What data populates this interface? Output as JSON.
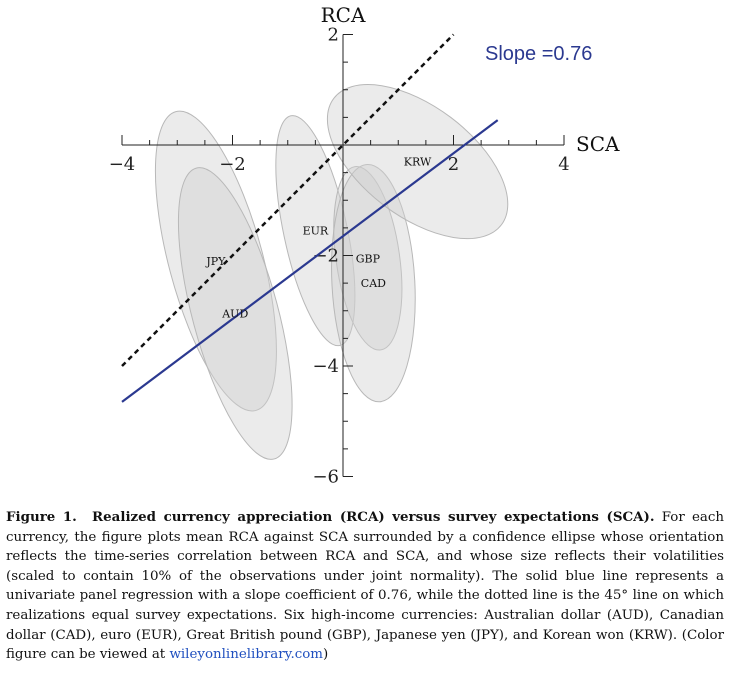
{
  "chart_data": {
    "type": "scatter",
    "xlabel": "SCA",
    "ylabel": "RCA",
    "xlim": [
      -4,
      4
    ],
    "ylim": [
      -6,
      2
    ],
    "x_major_ticks": [
      -4,
      -2,
      2,
      4
    ],
    "y_major_ticks": [
      2,
      -2,
      -4,
      -6
    ],
    "x_tick_labels": [
      "−4",
      "−2",
      "2",
      "4"
    ],
    "y_tick_labels": [
      "2",
      "−2",
      "−4",
      "−6"
    ],
    "grid": false,
    "points": [
      {
        "label": "JPY",
        "x": -2.3,
        "y": -2.1,
        "ellipse": {
          "width": 1.7,
          "height": 5.6,
          "angle": -15
        }
      },
      {
        "label": "AUD",
        "x": -1.95,
        "y": -3.05,
        "ellipse": {
          "width": 1.55,
          "height": 5.45,
          "angle": -15
        }
      },
      {
        "label": "EUR",
        "x": -0.5,
        "y": -1.55,
        "ellipse": {
          "width": 1.15,
          "height": 4.25,
          "angle": -12
        }
      },
      {
        "label": "GBP",
        "x": 0.45,
        "y": -2.05,
        "ellipse": {
          "width": 1.15,
          "height": 3.35,
          "angle": -8
        }
      },
      {
        "label": "CAD",
        "x": 0.55,
        "y": -2.5,
        "ellipse": {
          "width": 1.5,
          "height": 4.3,
          "angle": -3
        }
      },
      {
        "label": "KRW",
        "x": 1.35,
        "y": -0.3,
        "ellipse": {
          "width": 2.0,
          "height": 3.8,
          "angle": -53
        }
      }
    ],
    "regression_line": {
      "label": "Slope =0.76",
      "slope": 0.76,
      "x_range": [
        -4,
        2.8
      ],
      "y_range": [
        -4.65,
        0.45
      ],
      "style": "solid",
      "color": "#2b3990"
    },
    "diagonal_line": {
      "slope": 1,
      "x_range": [
        -4,
        2
      ],
      "style": "dotted",
      "color": "#111111"
    },
    "colors": {
      "ellipse_fill": "#cfcfcf",
      "ellipse_stroke": "#b8b8b8",
      "axis": "#222222"
    }
  },
  "caption": {
    "lead": "Figure 1.  Realized currency appreciation (RCA) versus survey expectations (SCA).",
    "body": " For each currency, the figure plots mean RCA against SCA surrounded by a confidence ellipse whose orientation reflects the time-series correlation between RCA and SCA, and whose size reflects their volatilities (scaled to contain 10% of the observations under joint normality). The solid blue line represents a univariate panel regression with a slope coefficient of 0.76, while the dotted line is the 45° line on which realizations equal survey expectations. Six high-income currencies: Australian dollar (AUD), Canadian dollar (CAD), euro (EUR), Great British pound (GBP), Japanese yen (JPY), and Korean won (KRW). (Color figure can be viewed at ",
    "link": "wileyonlinelibrary.com",
    "tail": ")"
  }
}
